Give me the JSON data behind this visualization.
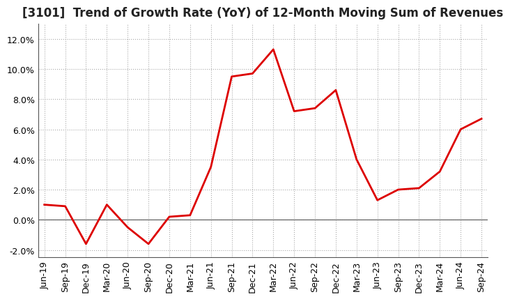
{
  "title": "[3101]  Trend of Growth Rate (YoY) of 12-Month Moving Sum of Revenues",
  "dates": [
    "Jun-19",
    "Sep-19",
    "Dec-19",
    "Mar-20",
    "Jun-20",
    "Sep-20",
    "Dec-20",
    "Mar-21",
    "Jun-21",
    "Sep-21",
    "Dec-21",
    "Mar-22",
    "Jun-22",
    "Sep-22",
    "Dec-22",
    "Mar-23",
    "Jun-23",
    "Sep-23",
    "Dec-23",
    "Mar-24",
    "Jun-24",
    "Sep-24"
  ],
  "values": [
    1.0,
    0.9,
    -1.6,
    1.0,
    -0.5,
    -1.6,
    0.2,
    0.3,
    3.5,
    9.5,
    9.7,
    11.3,
    7.2,
    7.4,
    8.6,
    4.0,
    1.3,
    2.0,
    2.1,
    3.2,
    6.0,
    6.7
  ],
  "line_color": "#dd0000",
  "ylim": [
    -2.5,
    13.0
  ],
  "yticks": [
    -2.0,
    0.0,
    2.0,
    4.0,
    6.0,
    8.0,
    10.0,
    12.0
  ],
  "grid_color": "#aaaaaa",
  "background_color": "#ffffff",
  "title_fontsize": 12,
  "tick_fontsize": 9,
  "line_width": 2.0
}
